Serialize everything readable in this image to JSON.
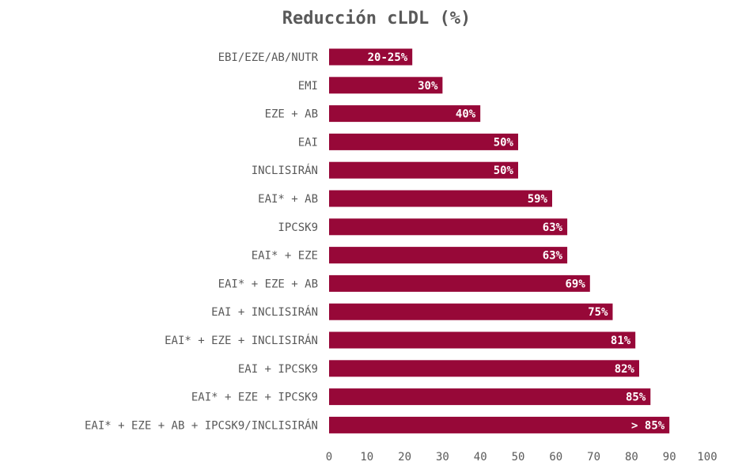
{
  "chart_data": {
    "type": "bar",
    "orientation": "horizontal",
    "title": "Reducción cLDL (%)",
    "xlabel": "",
    "ylabel": "",
    "xlim": [
      0,
      100
    ],
    "ticks": [
      0,
      10,
      20,
      30,
      40,
      50,
      60,
      70,
      80,
      90,
      100
    ],
    "grid": false,
    "legend": "none",
    "bar_color": "#970838",
    "categories": [
      "EBI/EZE/AB/NUTR",
      "EMI",
      "EZE + AB",
      "EAI",
      "INCLISIRÁN",
      "EAI* + AB",
      "IPCSK9",
      "EAI* + EZE",
      "EAI* + EZE + AB",
      "EAI + INCLISIRÁN",
      "EAI* + EZE + INCLISIRÁN",
      "EAI + IPCSK9",
      "EAI* + EZE + IPCSK9",
      "EAI* + EZE + AB + IPCSK9/INCLISIRÁN"
    ],
    "values": [
      22,
      30,
      40,
      50,
      50,
      59,
      63,
      63,
      69,
      75,
      81,
      82,
      85,
      90
    ],
    "data_labels": [
      "20-25%",
      "30%",
      "40%",
      "50%",
      "50%",
      "59%",
      "63%",
      "63%",
      "69%",
      "75%",
      "81%",
      "82%",
      "85%",
      "> 85%"
    ]
  }
}
